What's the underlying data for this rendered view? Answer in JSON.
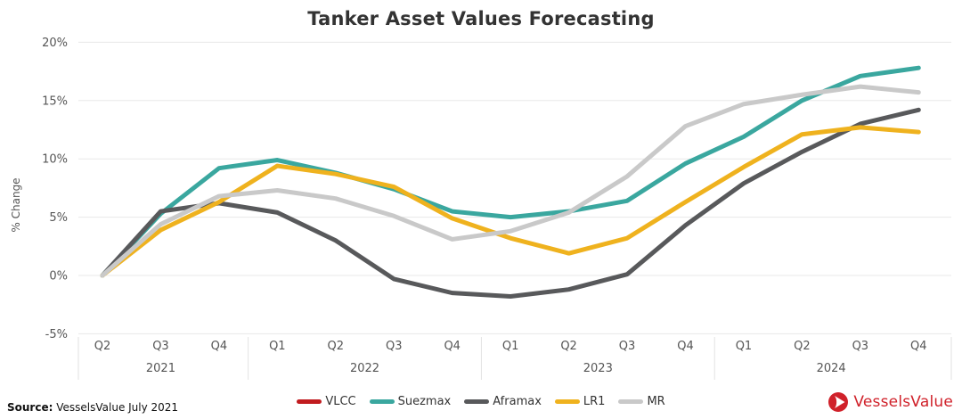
{
  "title": "Tanker Asset Values Forecasting",
  "y_axis": {
    "title": "% Change"
  },
  "source": {
    "label": "Source:",
    "text": "VesselsValue July 2021"
  },
  "logo": {
    "text": "VesselsValue",
    "color": "#d0212a"
  },
  "chart_data": {
    "type": "line",
    "title": "Tanker Asset Values Forecasting",
    "ylabel": "% Change",
    "ylim": [
      -5,
      20
    ],
    "ytick_step": 5,
    "ytick_labels": [
      "20%",
      "15%",
      "10%",
      "5%",
      "0%",
      "-5%"
    ],
    "grid": "horizontal",
    "legend_position": "bottom",
    "categories": [
      "Q2 2021",
      "Q3 2021",
      "Q4 2021",
      "Q1 2022",
      "Q2 2022",
      "Q3 2022",
      "Q4 2022",
      "Q1 2023",
      "Q2 2023",
      "Q3 2023",
      "Q4 2023",
      "Q1 2024",
      "Q2 2024",
      "Q3 2024",
      "Q4 2024"
    ],
    "x_tick_labels": [
      "Q2",
      "Q3",
      "Q4",
      "Q1",
      "Q2",
      "Q3",
      "Q4",
      "Q1",
      "Q2",
      "Q3",
      "Q4",
      "Q1",
      "Q2",
      "Q3",
      "Q4"
    ],
    "year_groups": [
      {
        "label": "2021",
        "count": 3
      },
      {
        "label": "2022",
        "count": 4
      },
      {
        "label": "2023",
        "count": 4
      },
      {
        "label": "2024",
        "count": 4
      }
    ],
    "series": [
      {
        "name": "VLCC",
        "color": "#c11b1f",
        "visible": false,
        "values": []
      },
      {
        "name": "Suezmax",
        "color": "#3aa79f",
        "values": [
          0,
          5.3,
          9.2,
          9.9,
          8.8,
          7.4,
          5.5,
          5.0,
          5.5,
          6.4,
          9.6,
          11.9,
          15.0,
          17.1,
          17.8
        ]
      },
      {
        "name": "Aframax",
        "color": "#58595b",
        "values": [
          0,
          5.5,
          6.2,
          5.4,
          3.0,
          -0.3,
          -1.5,
          -1.8,
          -1.2,
          0.1,
          4.3,
          7.9,
          10.6,
          13.0,
          14.2
        ]
      },
      {
        "name": "LR1",
        "color": "#efb21e",
        "values": [
          0,
          3.9,
          6.3,
          9.4,
          8.7,
          7.6,
          4.9,
          3.2,
          1.9,
          3.2,
          6.3,
          9.3,
          12.1,
          12.7,
          12.3
        ]
      },
      {
        "name": "MR",
        "color": "#c9c9c9",
        "values": [
          0,
          4.4,
          6.8,
          7.3,
          6.6,
          5.1,
          3.1,
          3.8,
          5.4,
          8.5,
          12.8,
          14.7,
          15.5,
          16.2,
          15.7
        ]
      }
    ]
  }
}
